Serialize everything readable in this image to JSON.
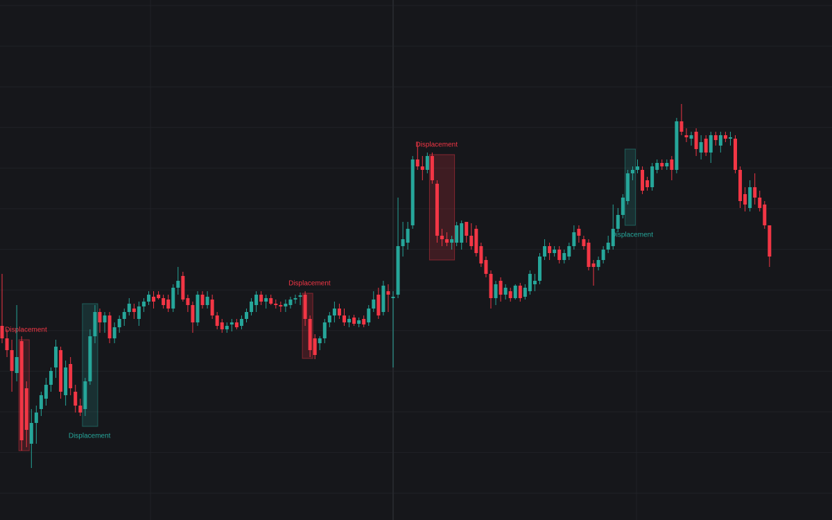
{
  "chart_data": {
    "type": "candlestick",
    "up_color": "#26a69a",
    "down_color": "#f23645",
    "grid": true,
    "ylim": [
      0,
      750
    ],
    "candles": [
      [
        280,
        355,
        255,
        262
      ],
      [
        262,
        275,
        235,
        245
      ],
      [
        245,
        260,
        185,
        215
      ],
      [
        212,
        310,
        200,
        235
      ],
      [
        258,
        265,
        100,
        115
      ],
      [
        190,
        200,
        105,
        130
      ],
      [
        110,
        160,
        75,
        140
      ],
      [
        140,
        165,
        110,
        155
      ],
      [
        160,
        185,
        150,
        180
      ],
      [
        175,
        205,
        165,
        195
      ],
      [
        195,
        220,
        185,
        215
      ],
      [
        220,
        260,
        205,
        250
      ],
      [
        245,
        250,
        175,
        185
      ],
      [
        180,
        230,
        165,
        220
      ],
      [
        225,
        235,
        180,
        190
      ],
      [
        185,
        195,
        155,
        165
      ],
      [
        165,
        175,
        150,
        155
      ],
      [
        160,
        205,
        150,
        200
      ],
      [
        200,
        275,
        195,
        265
      ],
      [
        265,
        310,
        255,
        300
      ],
      [
        300,
        305,
        270,
        285
      ],
      [
        285,
        300,
        270,
        295
      ],
      [
        295,
        300,
        255,
        262
      ],
      [
        262,
        285,
        255,
        278
      ],
      [
        278,
        295,
        270,
        290
      ],
      [
        290,
        305,
        280,
        300
      ],
      [
        300,
        320,
        295,
        312
      ],
      [
        305,
        312,
        290,
        300
      ],
      [
        290,
        315,
        280,
        308
      ],
      [
        308,
        320,
        300,
        315
      ],
      [
        315,
        330,
        310,
        325
      ],
      [
        322,
        330,
        305,
        315
      ],
      [
        325,
        330,
        318,
        320
      ],
      [
        320,
        325,
        305,
        310
      ],
      [
        318,
        325,
        300,
        305
      ],
      [
        305,
        340,
        300,
        335
      ],
      [
        335,
        365,
        325,
        345
      ],
      [
        352,
        358,
        315,
        318
      ],
      [
        320,
        325,
        300,
        310
      ],
      [
        310,
        315,
        270,
        285
      ],
      [
        285,
        330,
        280,
        325
      ],
      [
        325,
        330,
        305,
        310
      ],
      [
        310,
        330,
        305,
        322
      ],
      [
        318,
        325,
        290,
        295
      ],
      [
        295,
        300,
        275,
        280
      ],
      [
        285,
        290,
        270,
        275
      ],
      [
        275,
        285,
        270,
        280
      ],
      [
        282,
        290,
        272,
        285
      ],
      [
        285,
        290,
        275,
        278
      ],
      [
        280,
        295,
        275,
        290
      ],
      [
        290,
        305,
        285,
        300
      ],
      [
        300,
        320,
        295,
        315
      ],
      [
        310,
        330,
        300,
        325
      ],
      [
        325,
        330,
        310,
        315
      ],
      [
        315,
        325,
        305,
        320
      ],
      [
        320,
        325,
        310,
        312
      ],
      [
        312,
        318,
        305,
        310
      ],
      [
        310,
        315,
        300,
        308
      ],
      [
        308,
        318,
        300,
        312
      ],
      [
        310,
        322,
        305,
        318
      ],
      [
        318,
        325,
        312,
        320
      ],
      [
        322,
        328,
        310,
        324
      ],
      [
        325,
        330,
        280,
        290
      ],
      [
        290,
        295,
        235,
        245
      ],
      [
        262,
        268,
        232,
        238
      ],
      [
        255,
        265,
        245,
        262
      ],
      [
        262,
        290,
        255,
        285
      ],
      [
        285,
        300,
        278,
        295
      ],
      [
        295,
        315,
        285,
        305
      ],
      [
        305,
        312,
        290,
        295
      ],
      [
        295,
        305,
        280,
        285
      ],
      [
        285,
        295,
        278,
        290
      ],
      [
        292,
        296,
        280,
        283
      ],
      [
        283,
        292,
        278,
        288
      ],
      [
        290,
        295,
        278,
        282
      ],
      [
        285,
        310,
        280,
        305
      ],
      [
        305,
        330,
        300,
        318
      ],
      [
        325,
        335,
        290,
        295
      ],
      [
        300,
        345,
        295,
        338
      ],
      [
        330,
        340,
        300,
        325
      ],
      [
        320,
        330,
        220,
        322
      ],
      [
        325,
        465,
        320,
        395
      ],
      [
        395,
        430,
        380,
        405
      ],
      [
        400,
        430,
        390,
        420
      ],
      [
        425,
        525,
        420,
        520
      ],
      [
        520,
        545,
        505,
        510
      ],
      [
        510,
        525,
        490,
        505
      ],
      [
        505,
        530,
        500,
        525
      ],
      [
        525,
        530,
        485,
        490
      ],
      [
        485,
        490,
        400,
        410
      ],
      [
        410,
        420,
        395,
        405
      ],
      [
        405,
        415,
        395,
        400
      ],
      [
        400,
        410,
        390,
        405
      ],
      [
        400,
        430,
        395,
        425
      ],
      [
        400,
        432,
        390,
        428
      ],
      [
        430,
        430,
        400,
        410
      ],
      [
        410,
        428,
        390,
        395
      ],
      [
        420,
        425,
        380,
        385
      ],
      [
        395,
        400,
        365,
        370
      ],
      [
        375,
        380,
        350,
        355
      ],
      [
        355,
        360,
        305,
        320
      ],
      [
        320,
        345,
        310,
        340
      ],
      [
        345,
        350,
        315,
        325
      ],
      [
        325,
        340,
        318,
        335
      ],
      [
        330,
        335,
        315,
        320
      ],
      [
        320,
        340,
        318,
        338
      ],
      [
        338,
        342,
        315,
        320
      ],
      [
        322,
        340,
        318,
        335
      ],
      [
        330,
        360,
        325,
        355
      ],
      [
        340,
        355,
        330,
        345
      ],
      [
        345,
        385,
        340,
        380
      ],
      [
        380,
        405,
        375,
        395
      ],
      [
        395,
        400,
        375,
        385
      ],
      [
        385,
        395,
        380,
        390
      ],
      [
        390,
        395,
        370,
        375
      ],
      [
        375,
        390,
        370,
        385
      ],
      [
        380,
        400,
        375,
        395
      ],
      [
        395,
        425,
        390,
        415
      ],
      [
        420,
        425,
        400,
        410
      ],
      [
        405,
        410,
        390,
        395
      ],
      [
        400,
        405,
        360,
        365
      ],
      [
        370,
        375,
        338,
        365
      ],
      [
        365,
        380,
        360,
        375
      ],
      [
        375,
        395,
        370,
        390
      ],
      [
        390,
        410,
        385,
        400
      ],
      [
        395,
        455,
        390,
        420
      ],
      [
        420,
        450,
        415,
        440
      ],
      [
        440,
        470,
        435,
        465
      ],
      [
        460,
        505,
        455,
        500
      ],
      [
        500,
        510,
        490,
        505
      ],
      [
        505,
        520,
        500,
        510
      ],
      [
        505,
        510,
        470,
        475
      ],
      [
        490,
        495,
        475,
        480
      ],
      [
        480,
        515,
        475,
        510
      ],
      [
        505,
        520,
        500,
        515
      ],
      [
        515,
        520,
        505,
        510
      ],
      [
        510,
        520,
        505,
        515
      ],
      [
        520,
        525,
        490,
        505
      ],
      [
        505,
        580,
        500,
        575
      ],
      [
        575,
        600,
        555,
        560
      ],
      [
        555,
        565,
        545,
        552
      ],
      [
        550,
        560,
        540,
        555
      ],
      [
        560,
        565,
        525,
        535
      ],
      [
        530,
        555,
        520,
        545
      ],
      [
        550,
        555,
        525,
        530
      ],
      [
        530,
        560,
        515,
        555
      ],
      [
        555,
        560,
        540,
        548
      ],
      [
        540,
        560,
        530,
        555
      ],
      [
        555,
        560,
        545,
        550
      ],
      [
        550,
        560,
        540,
        552
      ],
      [
        550,
        555,
        500,
        505
      ],
      [
        505,
        510,
        450,
        460
      ],
      [
        470,
        480,
        445,
        455
      ],
      [
        450,
        490,
        445,
        480
      ],
      [
        480,
        500,
        455,
        465
      ],
      [
        465,
        475,
        445,
        450
      ],
      [
        455,
        460,
        420,
        425
      ],
      [
        425,
        425,
        365,
        380
      ]
    ],
    "zones": [
      {
        "label": "Displacement",
        "from": 4,
        "to": 5,
        "top": 260,
        "bottom": 100,
        "color": "#f23645",
        "label_side": "top"
      },
      {
        "label": "Displacement",
        "from": 17,
        "to": 19,
        "top": 312,
        "bottom": 135,
        "color": "#26a69a",
        "label_side": "bottom"
      },
      {
        "label": "Displacement",
        "from": 62,
        "to": 63,
        "top": 327,
        "bottom": 233,
        "color": "#f23645",
        "label_side": "top"
      },
      {
        "label": "Displacement",
        "from": 88,
        "to": 92,
        "top": 527,
        "bottom": 375,
        "color": "#f23645",
        "label_side": "top"
      },
      {
        "label": "Displacement",
        "from": 128,
        "to": 129,
        "top": 535,
        "bottom": 425,
        "color": "#26a69a",
        "label_side": "bottom"
      }
    ]
  }
}
